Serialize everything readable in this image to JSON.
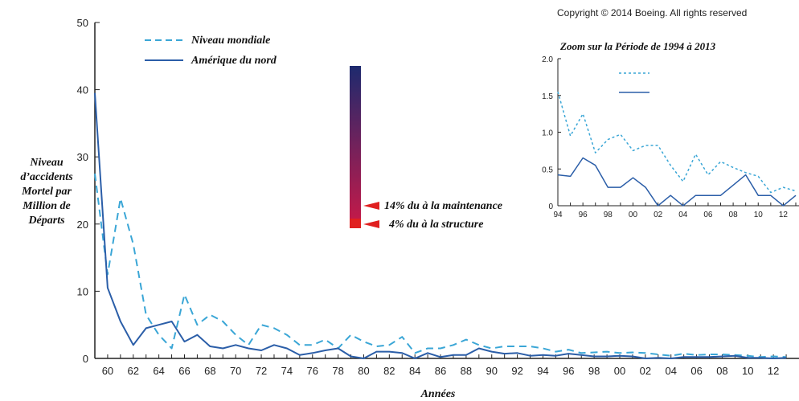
{
  "copyright": "Copyright © 2014 Boeing. All rights reserved",
  "colors": {
    "world": "#3aa6d6",
    "na": "#2b5ea8",
    "bar_top": "#1d2a6e",
    "bar_bottom": "#c01a4a",
    "marker": "#e02020"
  },
  "chart_data": [
    {
      "type": "line",
      "title": "",
      "xlabel": "Années",
      "ylabel": [
        "Niveau",
        "d’accidents",
        "Mortel par",
        "Million de",
        "Départs"
      ],
      "ylim": [
        0,
        50
      ],
      "yticks": [
        "0",
        "10",
        "20",
        "30",
        "40",
        "50"
      ],
      "xticks": [
        "60",
        "62",
        "64",
        "66",
        "68",
        "70",
        "72",
        "74",
        "76",
        "78",
        "80",
        "82",
        "84",
        "86",
        "88",
        "90",
        "92",
        "94",
        "96",
        "98",
        "00",
        "02",
        "04",
        "06",
        "08",
        "10",
        "12"
      ],
      "x": [
        1959,
        1960,
        1961,
        1962,
        1963,
        1964,
        1965,
        1966,
        1967,
        1968,
        1969,
        1970,
        1971,
        1972,
        1973,
        1974,
        1975,
        1976,
        1977,
        1978,
        1979,
        1980,
        1981,
        1982,
        1983,
        1984,
        1985,
        1986,
        1987,
        1988,
        1989,
        1990,
        1991,
        1992,
        1993,
        1994,
        1995,
        1996,
        1997,
        1998,
        1999,
        2000,
        2001,
        2002,
        2003,
        2004,
        2005,
        2006,
        2007,
        2008,
        2009,
        2010,
        2011,
        2012,
        2013
      ],
      "series": [
        {
          "name": "Niveau mondiale",
          "style": "dashed",
          "values": [
            27.5,
            12.5,
            23.8,
            17.0,
            6.5,
            3.5,
            1.5,
            9.5,
            5.0,
            6.5,
            5.5,
            3.5,
            2.0,
            5.0,
            4.5,
            3.5,
            2.0,
            2.0,
            2.8,
            1.5,
            3.5,
            2.5,
            1.8,
            2.0,
            3.2,
            0.8,
            1.5,
            1.5,
            2.0,
            2.8,
            2.0,
            1.5,
            1.8,
            1.8,
            1.8,
            1.5,
            1.0,
            1.3,
            0.8,
            0.9,
            1.0,
            0.8,
            0.9,
            0.8,
            0.6,
            0.4,
            0.7,
            0.5,
            0.6,
            0.6,
            0.5,
            0.4,
            0.2,
            0.3,
            0.2
          ]
        },
        {
          "name": "Amérique du nord",
          "style": "solid",
          "values": [
            39.5,
            10.5,
            5.5,
            2.0,
            4.5,
            5.0,
            5.5,
            2.5,
            3.5,
            1.8,
            1.5,
            2.0,
            1.5,
            1.2,
            2.0,
            1.5,
            0.5,
            0.8,
            1.2,
            1.5,
            0.3,
            0.0,
            1.0,
            1.0,
            0.8,
            0.0,
            0.8,
            0.2,
            0.5,
            0.5,
            1.5,
            1.0,
            0.7,
            0.8,
            0.4,
            0.5,
            0.4,
            0.7,
            0.5,
            0.3,
            0.3,
            0.4,
            0.3,
            0.0,
            0.1,
            0.0,
            0.2,
            0.2,
            0.2,
            0.3,
            0.4,
            0.1,
            0.1,
            0.0,
            0.1
          ]
        }
      ],
      "legend": "top-left"
    },
    {
      "type": "line",
      "title": "Zoom sur la Période de 1994 à 2013",
      "ylim": [
        0,
        2.0
      ],
      "yticks": [
        "0",
        "0.5",
        "1.0",
        "1.5",
        "2.0"
      ],
      "xticks": [
        "94",
        "96",
        "98",
        "00",
        "02",
        "04",
        "06",
        "08",
        "10",
        "12"
      ],
      "x": [
        1994,
        1995,
        1996,
        1997,
        1998,
        1999,
        2000,
        2001,
        2002,
        2003,
        2004,
        2005,
        2006,
        2007,
        2008,
        2009,
        2010,
        2011,
        2012,
        2013
      ],
      "series": [
        {
          "style": "dashed",
          "values": [
            1.55,
            0.95,
            1.25,
            0.72,
            0.9,
            0.97,
            0.75,
            0.82,
            0.82,
            0.55,
            0.33,
            0.7,
            0.42,
            0.6,
            0.52,
            0.45,
            0.4,
            0.18,
            0.25,
            0.2
          ]
        },
        {
          "style": "solid",
          "values": [
            0.42,
            0.4,
            0.65,
            0.55,
            0.25,
            0.25,
            0.38,
            0.25,
            0.0,
            0.14,
            0.0,
            0.14,
            0.14,
            0.14,
            0.28,
            0.42,
            0.14,
            0.14,
            0.0,
            0.14
          ]
        }
      ],
      "legend": "top-left"
    }
  ],
  "annotations": {
    "maintenance": "14% du à la maintenance",
    "structure": "4% du à la structure"
  }
}
